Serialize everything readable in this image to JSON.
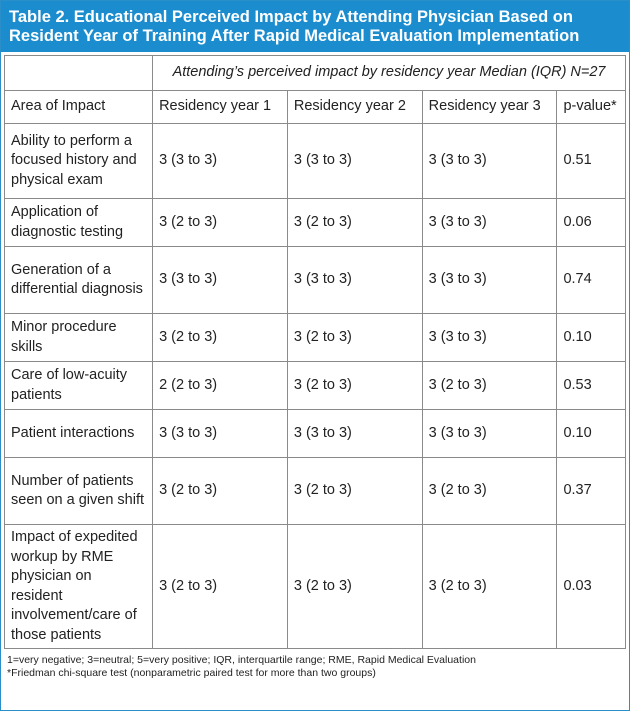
{
  "title": {
    "line1": "Table 2. Educational Perceived Impact by Attending Physician Based on",
    "line2": "Resident Year of Training After Rapid Medical Evaluation Implementation"
  },
  "table": {
    "spanning_header": "Attending’s perceived impact by residency year Median (IQR) N=27",
    "columns": [
      "Area of Impact",
      "Residency year 1",
      "Residency year 2",
      "Residency year 3",
      "p-value*"
    ],
    "rows": [
      {
        "area": "Ability to perform a focused history and physical exam",
        "y1": "3 (3 to 3)",
        "y2": "3 (3 to 3)",
        "y3": "3 (3 to 3)",
        "p": "0.51"
      },
      {
        "area": "Application of diagnostic testing",
        "y1": "3 (2 to 3)",
        "y2": "3 (2 to 3)",
        "y3": "3 (3 to 3)",
        "p": "0.06"
      },
      {
        "area": "Generation of a differential diagnosis",
        "y1": "3 (3 to 3)",
        "y2": "3 (3 to 3)",
        "y3": "3 (3 to 3)",
        "p": "0.74"
      },
      {
        "area": "Minor procedure skills",
        "y1": "3 (2 to 3)",
        "y2": "3 (2 to 3)",
        "y3": "3 (3 to 3)",
        "p": "0.10"
      },
      {
        "area": "Care of low-acuity patients",
        "y1": "2 (2 to 3)",
        "y2": "3 (2 to 3)",
        "y3": "3 (2 to 3)",
        "p": "0.53"
      },
      {
        "area": "Patient interactions",
        "y1": "3 (3 to 3)",
        "y2": "3 (3 to 3)",
        "y3": "3 (3 to 3)",
        "p": "0.10"
      },
      {
        "area": "Number of patients seen on a given shift",
        "y1": "3 (2 to 3)",
        "y2": "3 (2 to 3)",
        "y3": "3 (2 to 3)",
        "p": "0.37"
      },
      {
        "area": "Impact of expedited workup by RME physician on resident involvement/care of those patients",
        "y1": "3 (2 to 3)",
        "y2": "3 (2 to 3)",
        "y3": "3 (2 to 3)",
        "p": "0.03"
      }
    ]
  },
  "footnotes": {
    "line1": "1=very negative; 3=neutral; 5=very positive; IQR, interquartile range; RME, Rapid Medical Evaluation",
    "line2": "*Friedman chi-square test (nonparametric paired test for more than two groups)"
  }
}
